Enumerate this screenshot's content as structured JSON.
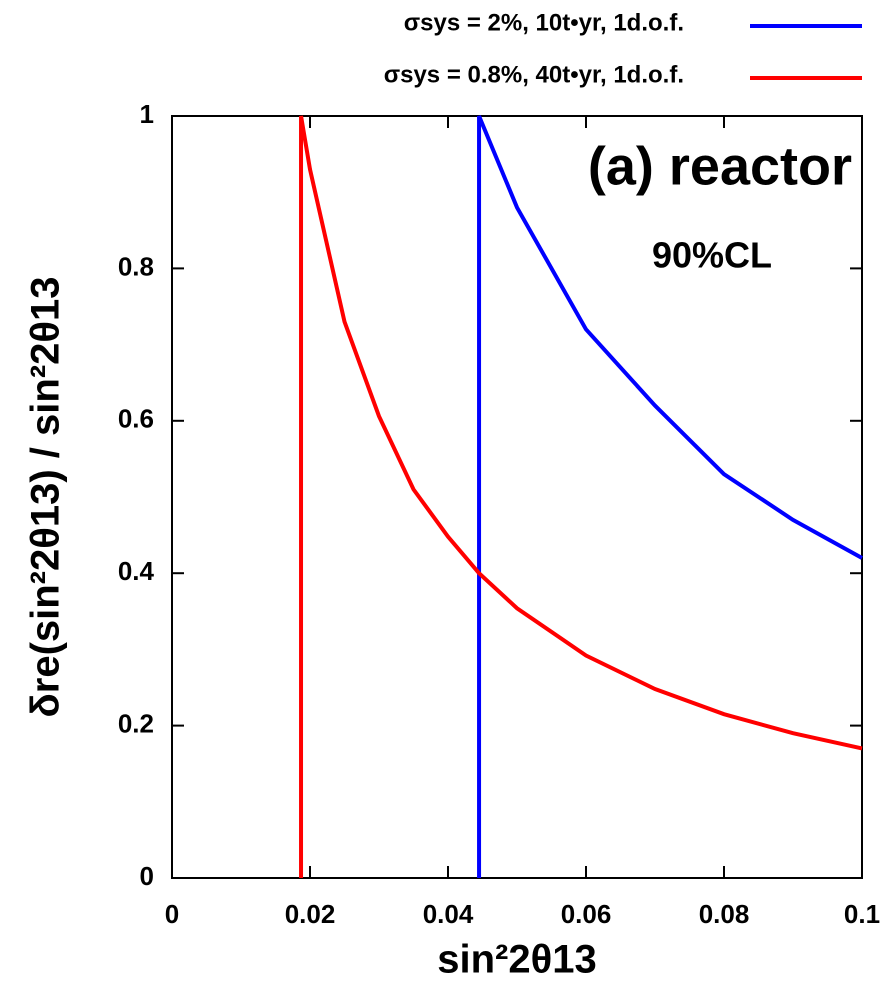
{
  "chart_data": {
    "type": "line",
    "xlabel": "sin²2θ13",
    "ylabel": "δre(sin²2θ13) / sin²2θ13",
    "annotations": [
      "(a) reactor",
      "90%CL"
    ],
    "series": [
      {
        "name": "σsys = 2%, 10t•yr, 1d.o.f.",
        "color": "#0000ff",
        "x": [
          0.0445,
          0.0445,
          0.05,
          0.06,
          0.07,
          0.08,
          0.09,
          0.1
        ],
        "values": [
          0,
          1,
          0.88,
          0.72,
          0.62,
          0.53,
          0.47,
          0.42
        ]
      },
      {
        "name": "σsys = 0.8%, 40t•yr, 1d.o.f.",
        "color": "#ff0000",
        "x": [
          0.0187,
          0.0187,
          0.02,
          0.025,
          0.03,
          0.035,
          0.04,
          0.0445,
          0.05,
          0.06,
          0.07,
          0.08,
          0.09,
          0.1
        ],
        "values": [
          0,
          1,
          0.93,
          0.73,
          0.606,
          0.51,
          0.448,
          0.4,
          0.354,
          0.292,
          0.248,
          0.215,
          0.19,
          0.17
        ]
      }
    ],
    "xlim": [
      0,
      0.1
    ],
    "xticks": [
      0,
      0.02,
      0.04,
      0.06,
      0.08,
      0.1
    ],
    "ylim": [
      0,
      1
    ],
    "yticks": [
      0,
      0.2,
      0.4,
      0.6,
      0.8,
      1
    ],
    "legend": "top-right",
    "grid": false
  }
}
